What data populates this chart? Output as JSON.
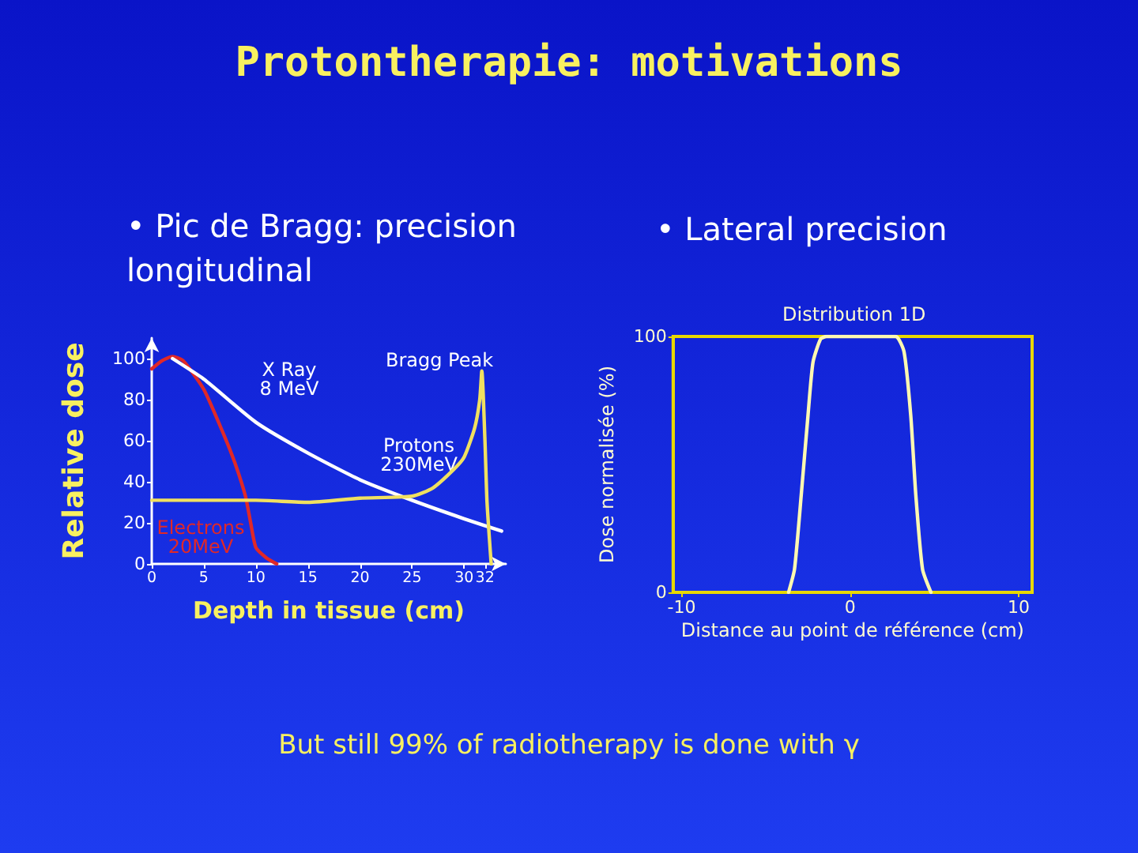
{
  "chart_data": [
    {
      "type": "line",
      "title": "Protontherapie: motivations",
      "subtitle": "• Pic de Bragg: precision longitudinal",
      "xlabel": "Depth in tissue (cm)",
      "ylabel": "Relative dose",
      "xlim": [
        0,
        34
      ],
      "xticks": [
        0,
        5,
        10,
        15,
        20,
        25,
        30,
        32
      ],
      "ylim": [
        0,
        110
      ],
      "yticks": [
        0,
        20,
        40,
        60,
        80,
        100
      ],
      "marker": "none",
      "line_style": "solid",
      "series": [
        {
          "color": "#e02828",
          "x": [
            0,
            1,
            2,
            3,
            5,
            7,
            8,
            9,
            9.5,
            10,
            11,
            12
          ],
          "values": [
            95,
            99,
            101,
            99,
            85,
            62,
            49,
            33,
            20,
            8,
            3,
            0
          ]
        },
        {
          "color": "#ffffff",
          "x": [
            2,
            5,
            10,
            15,
            20,
            25,
            30,
            33.6
          ],
          "values": [
            100,
            90,
            69,
            54,
            41,
            31,
            22,
            16
          ]
        },
        {
          "color": "#f0e060",
          "x": [
            0,
            5,
            10,
            15,
            20,
            25,
            27,
            29,
            30,
            31,
            31.5,
            31.7,
            32,
            32.2,
            32.6
          ],
          "values": [
            31,
            31,
            31,
            30,
            32,
            33,
            37,
            46,
            52,
            66,
            80,
            94,
            60,
            30,
            0
          ]
        }
      ],
      "annotations": [
        "X Ray\n8 MeV",
        "Bragg Peak",
        "Protons\n230MeV",
        "Electrons\n20MeV",
        "But still 99% of radiotherapy is done with γ"
      ]
    },
    {
      "type": "line",
      "title": "Distribution 1D",
      "subtitle": "• Lateral precision",
      "xlabel": "Distance au point de référence (cm)",
      "ylabel": "Dose normalisée (%)",
      "xlim": [
        -10.5,
        10.8
      ],
      "xticks": [
        -10,
        0,
        10
      ],
      "ylim": [
        0,
        100
      ],
      "yticks": [
        0,
        100
      ],
      "marker": "none",
      "line_style": "solid",
      "series": [
        {
          "color": "#fff8b0",
          "x": [
            -3.65,
            -3.3,
            -2.9,
            -2.5,
            -2.2,
            -1.75,
            -1.4,
            0,
            2.7,
            3.2,
            3.6,
            3.9,
            4.3,
            4.8
          ],
          "values": [
            0,
            9,
            38,
            69,
            90,
            99,
            100,
            100,
            100,
            94,
            69,
            38,
            9,
            0
          ]
        }
      ]
    }
  ]
}
